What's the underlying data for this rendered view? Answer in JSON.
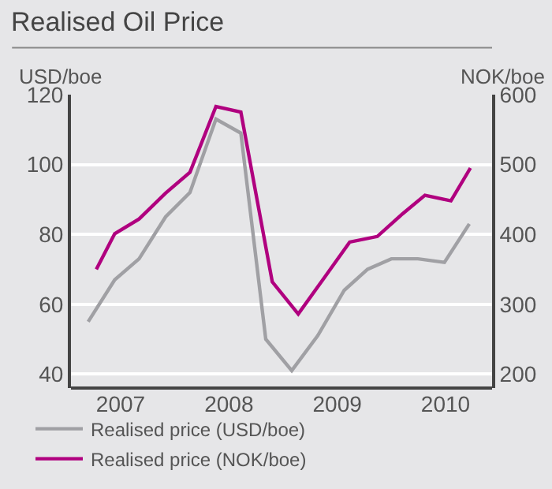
{
  "chart_data": {
    "type": "line",
    "title": "Realised Oil Price",
    "ylabel": "USD/boe",
    "y2label": "NOK/boe",
    "x": [
      2007.2,
      2007.445,
      2007.67,
      2007.915,
      2008.14,
      2008.38,
      2008.61,
      2008.84,
      2009.08,
      2009.32,
      2009.565,
      2009.78,
      2010.0,
      2010.245,
      2010.49,
      2010.72
    ],
    "series": [
      {
        "name": "Realised price (USD/boe)",
        "color": "#a0a0a4",
        "values": [
          55,
          67,
          73,
          85,
          92,
          113,
          109,
          50,
          41,
          51,
          64,
          70,
          73,
          73,
          72,
          83
        ]
      },
      {
        "name": "Realised price (NOK/boe)",
        "color": "#b0007f",
        "axis": "y2",
        "x": [
          2007.275,
          2007.445,
          2007.67,
          2007.915,
          2008.14,
          2008.38,
          2008.61,
          2008.9,
          2009.14,
          2009.385,
          2009.615,
          2009.87,
          2010.1,
          2010.31,
          2010.55,
          2010.73
        ],
        "values": [
          350,
          401,
          422,
          459,
          489,
          583,
          575,
          332,
          286,
          339,
          389,
          397,
          429,
          456,
          448,
          495
        ]
      }
    ],
    "xlim": [
      2007.041,
      2010.93
    ],
    "xticks": [
      {
        "value": 2007.5,
        "label": "2007"
      },
      {
        "value": 2008.5,
        "label": "2008"
      },
      {
        "value": 2009.5,
        "label": "2009"
      },
      {
        "value": 2010.5,
        "label": "2010"
      }
    ],
    "ylim": [
      36,
      120
    ],
    "yticks": [
      40,
      60,
      80,
      100,
      120
    ],
    "y2lim": [
      180,
      600
    ],
    "y2ticks": [
      200,
      300,
      400,
      500,
      600
    ],
    "grid": "y",
    "legend": "bottom",
    "line_style": "solid",
    "marker": "none"
  }
}
